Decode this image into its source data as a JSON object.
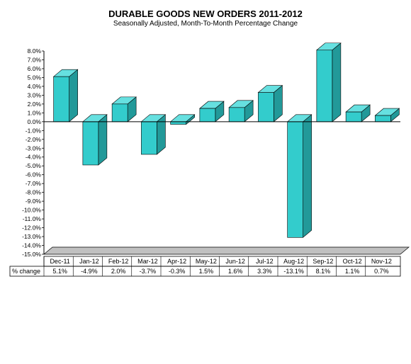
{
  "chart_data": {
    "type": "bar",
    "title": "DURABLE GOODS NEW ORDERS 2011-2012",
    "subtitle": "Seasonally Adjusted,  Month-To-Month Percentage Change",
    "ylabel": "",
    "xlabel": "",
    "ylim": [
      -15.0,
      8.0
    ],
    "y_tick_step": 1.0,
    "categories": [
      "Dec-11",
      "Jan-12",
      "Feb-12",
      "Mar-12",
      "Apr-12",
      "May-12",
      "Jun-12",
      "Jul-12",
      "Aug-12",
      "Sep-12",
      "Oct-12",
      "Nov-12"
    ],
    "values": [
      5.1,
      -4.9,
      2.0,
      -3.7,
      -0.3,
      1.5,
      1.6,
      3.3,
      -13.1,
      8.1,
      1.1,
      0.7
    ],
    "table": {
      "row_label": "% change",
      "values": [
        "5.1%",
        "-4.9%",
        "2.0%",
        "-3.7%",
        "-0.3%",
        "1.5%",
        "1.6%",
        "3.3%",
        "-13.1%",
        "8.1%",
        "1.1%",
        "0.7%"
      ]
    },
    "colors": {
      "bar_front": "#33cccc",
      "bar_side": "#229999",
      "bar_top": "#66e0e0",
      "floor": "#c0c0c0"
    },
    "grid": false,
    "legend": "none"
  }
}
